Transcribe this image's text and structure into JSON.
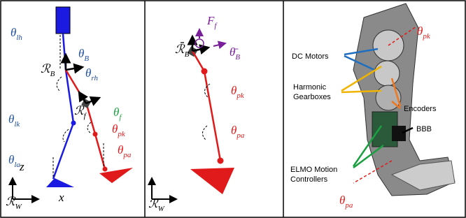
{
  "panel_model": {
    "labels": [
      {
        "base": "θ",
        "sub": "lh"
      },
      {
        "base": "θ",
        "sub": "B"
      },
      {
        "base": "ℛ",
        "sub": "B"
      },
      {
        "base": "θ",
        "sub": "rh"
      },
      {
        "base": "ℛ",
        "sub": "f"
      },
      {
        "base": "θ",
        "sub": "f"
      },
      {
        "base": "θ",
        "sub": "lk"
      },
      {
        "base": "θ",
        "sub": "pk"
      },
      {
        "base": "θ",
        "sub": "la"
      },
      {
        "base": "θ",
        "sub": "pa"
      },
      {
        "base": "z"
      },
      {
        "base": "x"
      },
      {
        "base": "ℛ",
        "sub": "W"
      }
    ]
  },
  "panel_reduced": {
    "labels": [
      {
        "base": "F",
        "sub": "f"
      },
      {
        "base": "ℛ̄",
        "sub": "B"
      },
      {
        "base": "θ̄",
        "sub": "B"
      },
      {
        "base": "θ",
        "sub": "pk"
      },
      {
        "base": "θ",
        "sub": "pa"
      },
      {
        "base": "ℛ",
        "sub": "W"
      }
    ]
  },
  "panel_hardware": {
    "callouts": [
      {
        "lines": [
          "DC Motors"
        ]
      },
      {
        "lines": [
          "Harmonic",
          "Gearboxes"
        ]
      },
      {
        "lines": [
          "Encoders"
        ]
      },
      {
        "lines": [
          "BBB"
        ]
      },
      {
        "lines": [
          "ELMO Motion",
          "Controllers"
        ]
      }
    ],
    "labels": [
      {
        "base": "θ",
        "sub": "pk"
      },
      {
        "base": "θ",
        "sub": "pa"
      }
    ]
  }
}
